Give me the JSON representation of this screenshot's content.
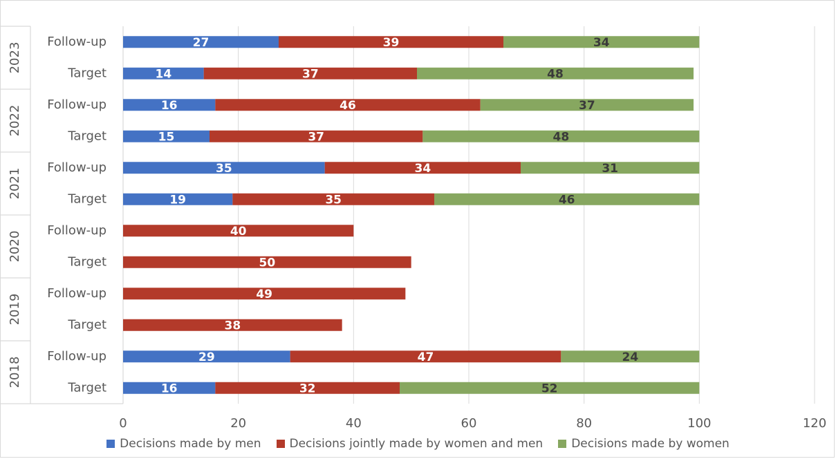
{
  "chart_data": {
    "type": "bar",
    "orientation": "horizontal",
    "stacked": true,
    "groups": [
      {
        "label": "2023",
        "rows": [
          {
            "label": "Follow-up",
            "values": [
              27,
              39,
              34
            ]
          },
          {
            "label": "Target",
            "values": [
              14,
              37,
              48
            ]
          }
        ]
      },
      {
        "label": "2022",
        "rows": [
          {
            "label": "Follow-up",
            "values": [
              16,
              46,
              37
            ]
          },
          {
            "label": "Target",
            "values": [
              15,
              37,
              48
            ]
          }
        ]
      },
      {
        "label": "2021",
        "rows": [
          {
            "label": "Follow-up",
            "values": [
              35,
              34,
              31
            ]
          },
          {
            "label": "Target",
            "values": [
              19,
              35,
              46
            ]
          }
        ]
      },
      {
        "label": "2020",
        "rows": [
          {
            "label": "Follow-up",
            "values": [
              null,
              40,
              null
            ]
          },
          {
            "label": "Target",
            "values": [
              null,
              50,
              null
            ]
          }
        ]
      },
      {
        "label": "2019",
        "rows": [
          {
            "label": "Follow-up",
            "values": [
              null,
              49,
              null
            ]
          },
          {
            "label": "Target",
            "values": [
              null,
              38,
              null
            ]
          }
        ]
      },
      {
        "label": "2018",
        "rows": [
          {
            "label": "Follow-up",
            "values": [
              29,
              47,
              24
            ]
          },
          {
            "label": "Target",
            "values": [
              16,
              32,
              52
            ]
          }
        ]
      }
    ],
    "series": [
      {
        "name": "Decisions made by men",
        "color": "#4472c4",
        "label_color": "#ffffff"
      },
      {
        "name": "Decisions jointly made by women and men",
        "color": "#b33a2a",
        "label_color": "#ffffff"
      },
      {
        "name": "Decisions made by women",
        "color": "#87a760",
        "label_color": "#3a3a3a"
      }
    ],
    "xlim": [
      0,
      120
    ],
    "xticks": [
      0,
      20,
      40,
      60,
      80,
      100,
      120
    ],
    "grid": true,
    "legend_position": "bottom"
  }
}
